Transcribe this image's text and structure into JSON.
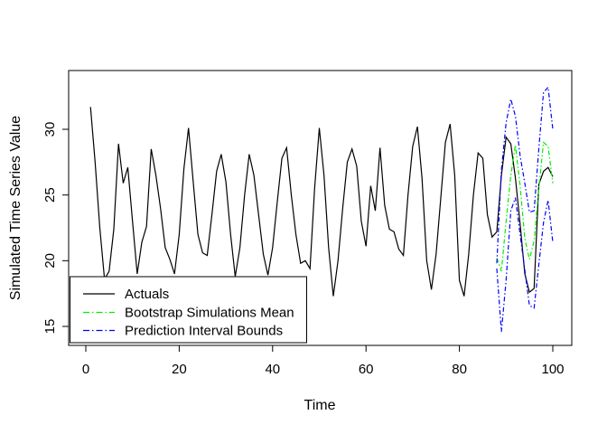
{
  "chart_data": {
    "type": "line",
    "title": "",
    "xlabel": "Time",
    "ylabel": "Simulated Time Series Value",
    "x_ticks": [
      "0",
      "20",
      "40",
      "60",
      "80",
      "100"
    ],
    "x_tick_values": [
      0,
      20,
      40,
      60,
      80,
      100
    ],
    "y_ticks": [
      "15",
      "20",
      "25",
      "30"
    ],
    "y_tick_values": [
      15,
      20,
      25,
      30
    ],
    "xlim": [
      -3,
      104
    ],
    "ylim": [
      13.6,
      34.4
    ],
    "grid": false,
    "legend_position": "bottom-left",
    "legend": [
      {
        "label": "Actuals",
        "color": "#000000",
        "dash": "solid"
      },
      {
        "label": "Bootstrap Simulations Mean",
        "color": "#00EE00",
        "dash": "dotdash"
      },
      {
        "label": "Prediction Interval Bounds",
        "color": "#0000FF",
        "dash": "dotdash"
      }
    ],
    "series": [
      {
        "id": "actuals",
        "name": "Actuals",
        "color": "#000000",
        "dash": "solid",
        "x_start": 1,
        "values": [
          31.7,
          27.5,
          22.5,
          18.6,
          19.2,
          22.4,
          28.9,
          25.9,
          27.1,
          23.0,
          19.0,
          21.4,
          22.6,
          28.5,
          26.5,
          24.0,
          21.0,
          20.1,
          19.0,
          22.0,
          27.0,
          30.1,
          26.0,
          22.0,
          20.6,
          20.4,
          23.5,
          26.8,
          28.1,
          26.0,
          22.0,
          18.8,
          21.0,
          25.0,
          28.1,
          26.5,
          23.5,
          20.5,
          18.9,
          21.0,
          24.5,
          27.8,
          28.6,
          25.0,
          22.0,
          19.8,
          20.0,
          19.4,
          25.5,
          30.1,
          26.5,
          21.0,
          17.3,
          20.0,
          24.0,
          27.5,
          28.5,
          27.2,
          23.0,
          21.1,
          25.7,
          23.8,
          28.6,
          24.2,
          22.4,
          22.2,
          20.9,
          20.4,
          25.0,
          28.7,
          30.2,
          26.3,
          20.0,
          17.8,
          20.5,
          24.7,
          29.0,
          30.4,
          26.5,
          18.5,
          17.3,
          20.5,
          25.0,
          28.2,
          27.8,
          23.5,
          21.8,
          22.2,
          26.5,
          29.4,
          28.9,
          26.3,
          22.8,
          19.0,
          17.6,
          17.9,
          25.8,
          26.8,
          27.1,
          26.4
        ]
      },
      {
        "id": "bootstrap-mean",
        "name": "Bootstrap Simulations Mean",
        "color": "#00EE00",
        "dash": "dotdash",
        "x_start": 88,
        "values": [
          20.2,
          19.2,
          23.0,
          26.5,
          28.8,
          25.7,
          21.7,
          20.1,
          21.5,
          25.5,
          29.0,
          28.7,
          25.9
        ]
      },
      {
        "id": "prediction-upper",
        "name": "Prediction Interval Bounds",
        "color": "#0000FF",
        "dash": "dotdash",
        "x_start": 88,
        "values": [
          19.8,
          26.9,
          30.5,
          32.3,
          31.0,
          28.0,
          25.9,
          23.7,
          23.8,
          28.5,
          32.8,
          33.2,
          30.0
        ]
      },
      {
        "id": "prediction-lower",
        "name": "Prediction Interval Bounds",
        "color": "#0000FF",
        "dash": "dotdash",
        "x_start": 88,
        "values": [
          19.4,
          14.6,
          18.5,
          23.8,
          24.8,
          22.0,
          19.3,
          16.6,
          16.4,
          19.7,
          22.9,
          24.6,
          21.4
        ]
      }
    ]
  }
}
